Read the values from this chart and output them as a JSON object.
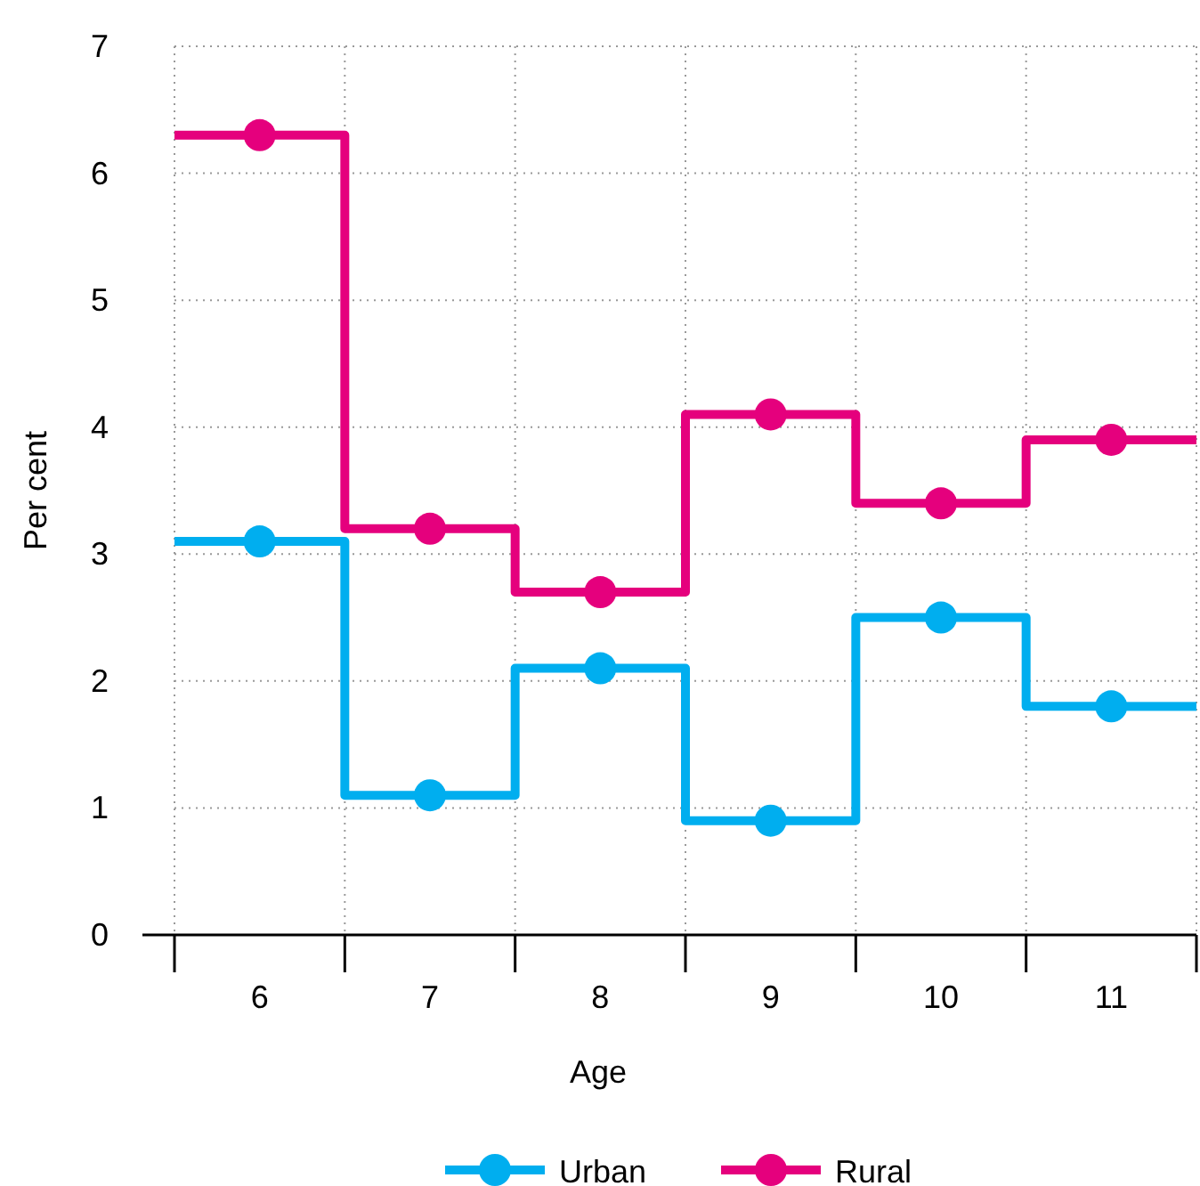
{
  "chart_data": {
    "type": "step",
    "xlabel": "Age",
    "ylabel": "Per cent",
    "categories": [
      "6",
      "7",
      "8",
      "9",
      "10",
      "11"
    ],
    "series": [
      {
        "name": "Urban",
        "color": "#00aeef",
        "values": [
          3.1,
          1.1,
          2.1,
          0.9,
          2.5,
          1.8
        ]
      },
      {
        "name": "Rural",
        "color": "#e5007d",
        "values": [
          6.3,
          3.2,
          2.7,
          4.1,
          3.4,
          3.9
        ]
      }
    ],
    "ylim": [
      0,
      7
    ],
    "yticks": [
      0,
      1,
      2,
      3,
      4,
      5,
      6,
      7
    ],
    "grid": true,
    "legend": "bottom",
    "marker": "circle",
    "line_style": "solid"
  }
}
